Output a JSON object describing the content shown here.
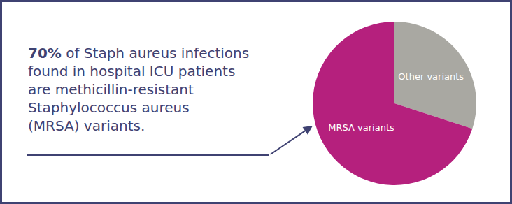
{
  "chart_data": {
    "type": "pie",
    "categories": [
      "Other variants",
      "MRSA variants"
    ],
    "values": [
      30,
      70
    ],
    "colors": [
      "#a9a8a2",
      "#b5207d"
    ],
    "annotation": {
      "bold": "70%",
      "lines": [
        "70% of Staph aureus infections",
        "found in hospital ICU patients",
        "are methicillin-resistant",
        "Staphylococcus aureus",
        "(MRSA) variants."
      ]
    }
  }
}
